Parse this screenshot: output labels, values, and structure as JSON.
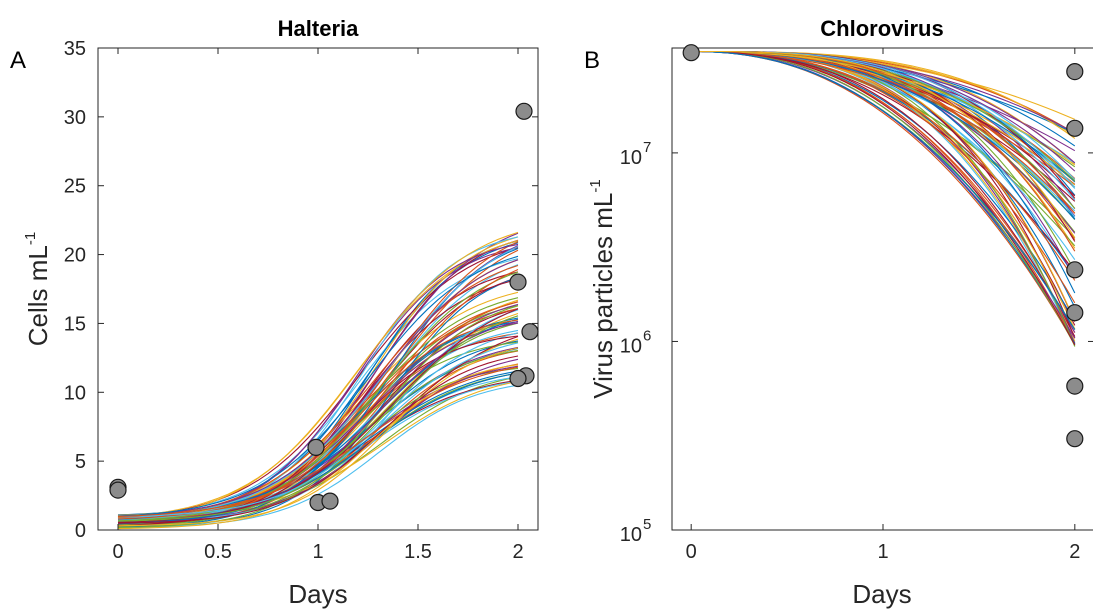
{
  "panels": [
    {
      "panel_label": "A",
      "title": "Halteria",
      "xlabel": "Days",
      "ylabel_base": "Cells mL",
      "ylabel_sup": "-1"
    },
    {
      "panel_label": "B",
      "title": "Chlorovirus",
      "xlabel": "Days",
      "ylabel_base": "Virus particles mL",
      "ylabel_sup": "-1"
    }
  ],
  "chart_data": [
    {
      "type": "scatter",
      "title": "Halteria",
      "xlabel": "Days",
      "ylabel": "Cells mL-1",
      "xlim": [
        -0.1,
        2.1
      ],
      "ylim": [
        0,
        35
      ],
      "xticks": [
        0,
        0.5,
        1,
        1.5,
        2
      ],
      "xtick_labels": [
        "0",
        "0.5",
        "1",
        "1.5",
        "2"
      ],
      "yticks": [
        0,
        5,
        10,
        15,
        20,
        25,
        30,
        35
      ],
      "ytick_labels": [
        "0",
        "5",
        "10",
        "15",
        "20",
        "25",
        "30",
        "35"
      ],
      "grid": false,
      "points": [
        {
          "x": 0,
          "y": 3.1
        },
        {
          "x": 0,
          "y": 2.9
        },
        {
          "x": 0.99,
          "y": 6.0
        },
        {
          "x": 1.0,
          "y": 2.0
        },
        {
          "x": 1.06,
          "y": 2.1
        },
        {
          "x": 2.03,
          "y": 30.4
        },
        {
          "x": 2.0,
          "y": 18.0
        },
        {
          "x": 2.06,
          "y": 14.4
        },
        {
          "x": 2.04,
          "y": 11.2
        },
        {
          "x": 2.0,
          "y": 11.0
        }
      ],
      "fit_curves": {
        "model": "logistic",
        "count": 80,
        "x_range": [
          0,
          2
        ],
        "y0_range": [
          0.1,
          1.1
        ],
        "y_end_range": [
          10.5,
          21.9
        ]
      }
    },
    {
      "type": "scatter",
      "title": "Chlorovirus",
      "xlabel": "Days",
      "ylabel": "Virus particles mL-1",
      "yscale": "log",
      "xlim": [
        -0.1,
        2.1
      ],
      "ylim": [
        100000,
        36000000
      ],
      "xticks": [
        0,
        1,
        2
      ],
      "xtick_labels": [
        "0",
        "1",
        "2"
      ],
      "yticks": [
        100000,
        1000000,
        10000000
      ],
      "ytick_labels": [
        {
          "base": "10",
          "exp": "5"
        },
        {
          "base": "10",
          "exp": "6"
        },
        {
          "base": "10",
          "exp": "7"
        }
      ],
      "grid": false,
      "points": [
        {
          "x": 0,
          "y": 34000000
        },
        {
          "x": 2,
          "y": 27000000
        },
        {
          "x": 2,
          "y": 13500000
        },
        {
          "x": 2,
          "y": 2400000
        },
        {
          "x": 2,
          "y": 1420000
        },
        {
          "x": 2,
          "y": 580000
        },
        {
          "x": 2,
          "y": 305000
        }
      ],
      "fit_curves": {
        "model": "decay",
        "count": 80,
        "x_range": [
          0,
          2
        ],
        "y0": 34500000,
        "y_end_range": [
          940000,
          15500000
        ]
      }
    }
  ],
  "colors": {
    "marker_fill": "#8c8c8c",
    "marker_edge": "#1a1a1a",
    "axis": "#262626",
    "curve_palette": [
      "#0072bd",
      "#d95319",
      "#edb120",
      "#7e2f8e",
      "#77ac30",
      "#4dbeee",
      "#a2142f"
    ]
  }
}
